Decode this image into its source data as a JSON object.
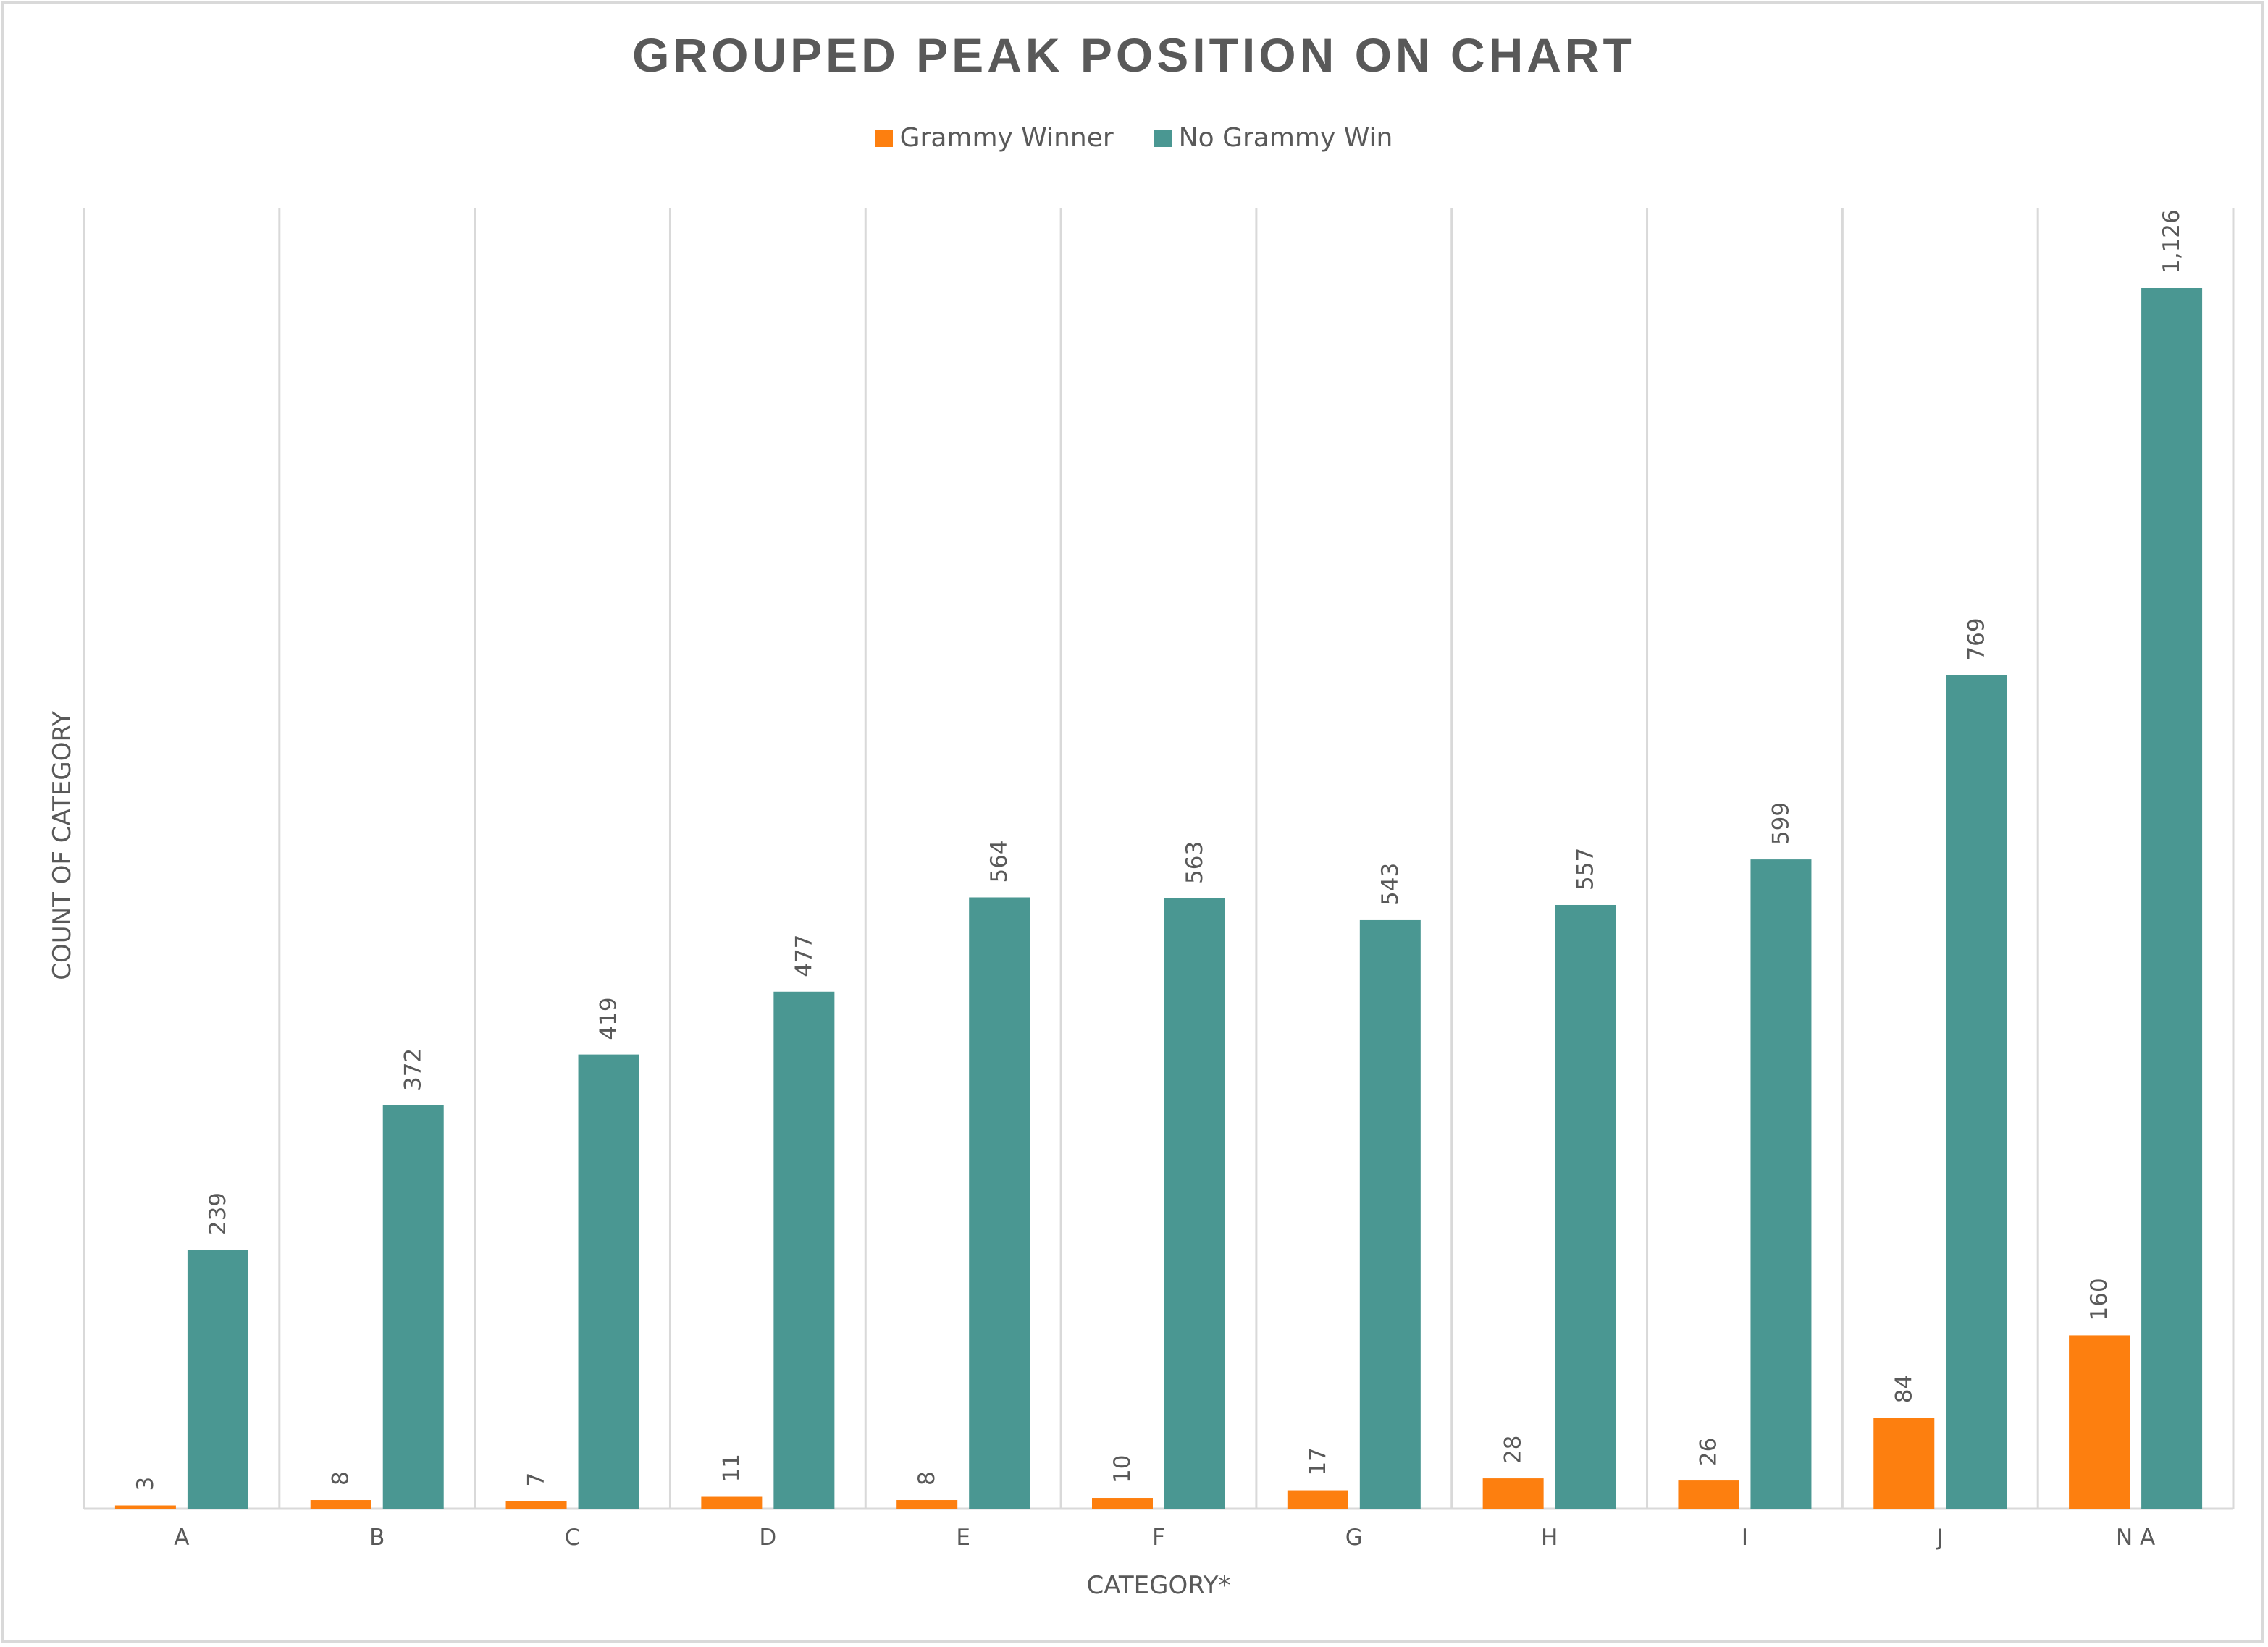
{
  "chart_data": {
    "type": "bar",
    "title": "GROUPED PEAK POSITION ON CHART",
    "xlabel": "CATEGORY*",
    "ylabel": "COUNT OF CATEGORY",
    "categories": [
      "A",
      "B",
      "C",
      "D",
      "E",
      "F",
      "G",
      "H",
      "I",
      "J",
      "N A"
    ],
    "series": [
      {
        "name": "Grammy Winner",
        "color": "#fd7f0f",
        "values": [
          3,
          8,
          7,
          11,
          8,
          10,
          17,
          28,
          26,
          84,
          160
        ]
      },
      {
        "name": "No Grammy Win",
        "color": "#4a9792",
        "values": [
          239,
          372,
          419,
          477,
          564,
          563,
          543,
          557,
          599,
          769,
          1126
        ]
      }
    ],
    "data_labels": [
      [
        "3",
        "8",
        "7",
        "11",
        "8",
        "10",
        "17",
        "28",
        "26",
        "84",
        "160"
      ],
      [
        "239",
        "372",
        "419",
        "477",
        "564",
        "563",
        "543",
        "557",
        "599",
        "769",
        "1,126"
      ]
    ],
    "ylim": [
      0,
      1200
    ],
    "grid": "vertical",
    "legend": "top-center"
  }
}
